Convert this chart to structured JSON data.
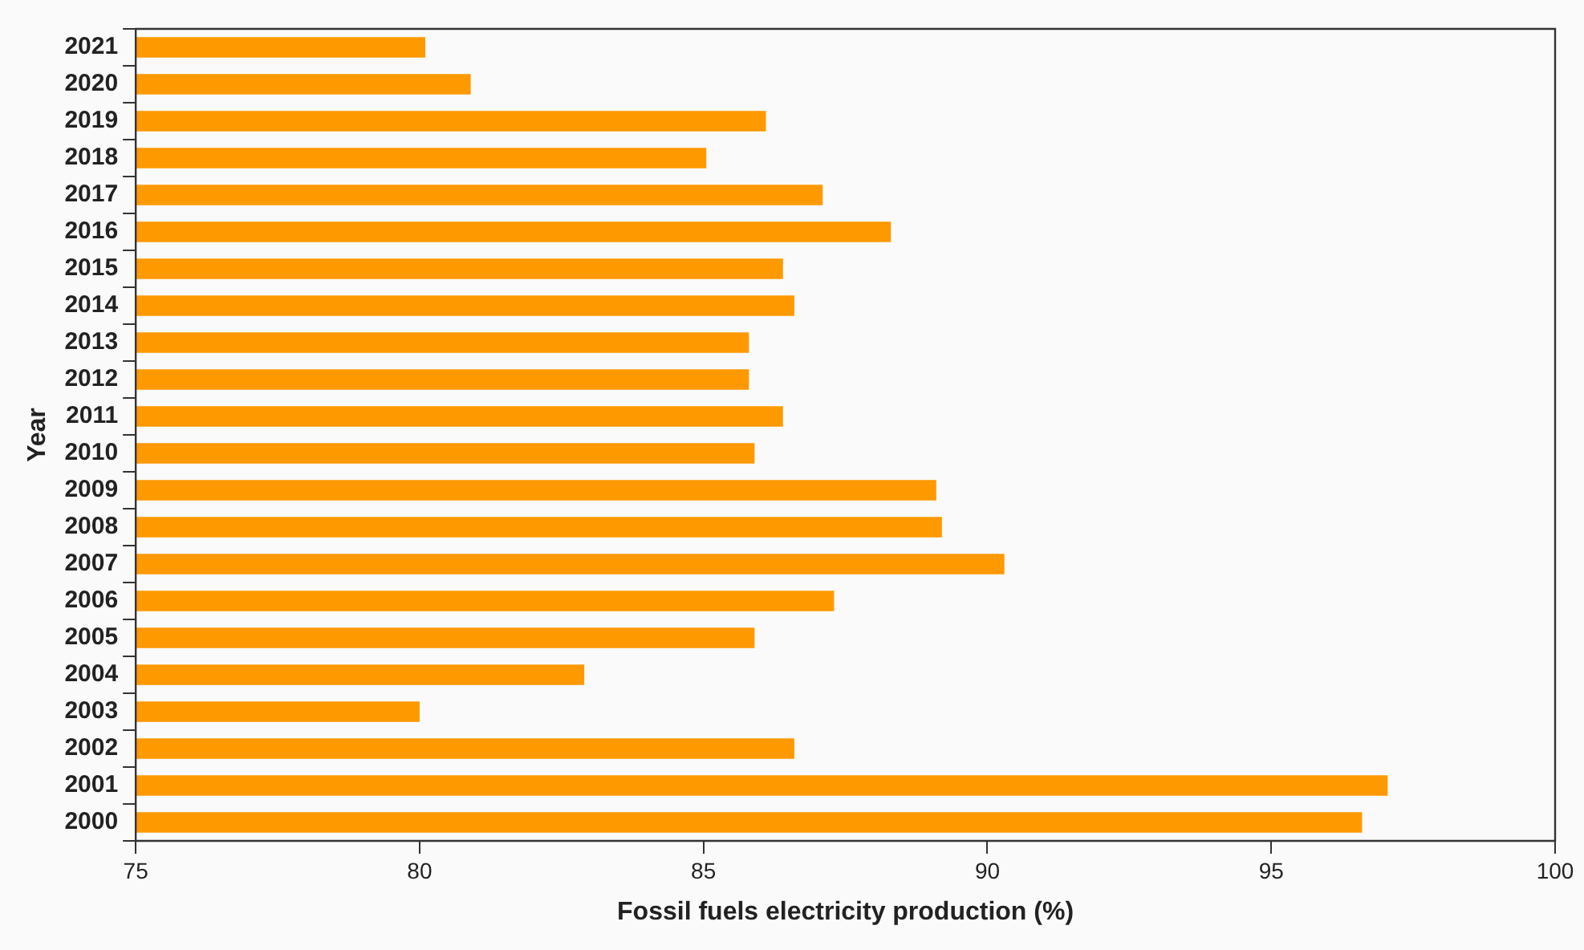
{
  "chart_data": {
    "type": "bar",
    "orientation": "horizontal",
    "xlabel": "Fossil fuels electricity production (%)",
    "ylabel": "Year",
    "categories": [
      "2021",
      "2020",
      "2019",
      "2018",
      "2017",
      "2016",
      "2015",
      "2014",
      "2013",
      "2012",
      "2011",
      "2010",
      "2009",
      "2008",
      "2007",
      "2006",
      "2005",
      "2004",
      "2003",
      "2002",
      "2001",
      "2000"
    ],
    "values": [
      80.1,
      80.9,
      86.1,
      85.05,
      87.1,
      88.3,
      86.4,
      86.6,
      85.8,
      85.8,
      86.4,
      85.9,
      89.1,
      89.2,
      90.3,
      87.3,
      85.9,
      82.9,
      80.0,
      86.6,
      97.05,
      96.6
    ],
    "color": "#ff9900",
    "xlim": [
      75,
      100
    ],
    "xticks": [
      75,
      80,
      85,
      90,
      95,
      100
    ],
    "grid": false,
    "legend": false
  }
}
